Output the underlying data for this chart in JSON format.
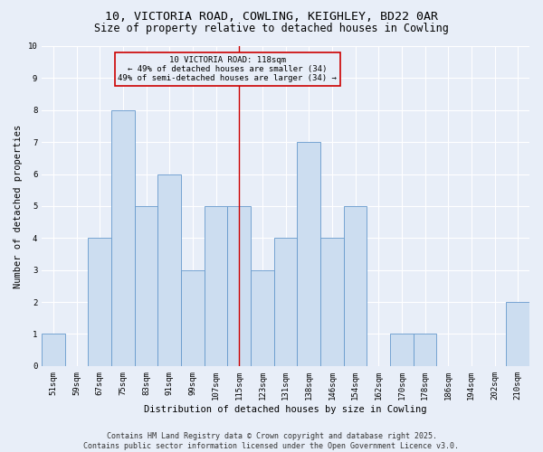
{
  "title1": "10, VICTORIA ROAD, COWLING, KEIGHLEY, BD22 0AR",
  "title2": "Size of property relative to detached houses in Cowling",
  "xlabel": "Distribution of detached houses by size in Cowling",
  "ylabel": "Number of detached properties",
  "categories": [
    "51sqm",
    "59sqm",
    "67sqm",
    "75sqm",
    "83sqm",
    "91sqm",
    "99sqm",
    "107sqm",
    "115sqm",
    "123sqm",
    "131sqm",
    "138sqm",
    "146sqm",
    "154sqm",
    "162sqm",
    "170sqm",
    "178sqm",
    "186sqm",
    "194sqm",
    "202sqm",
    "210sqm"
  ],
  "bar_values": [
    1,
    0,
    4,
    8,
    5,
    6,
    3,
    5,
    5,
    3,
    4,
    7,
    4,
    5,
    0,
    1,
    1,
    0,
    0,
    0,
    2
  ],
  "bar_color": "#ccddf0",
  "bar_edge_color": "#6699cc",
  "vline_idx": 8,
  "vline_color": "#cc0000",
  "ylim": [
    0,
    10
  ],
  "yticks": [
    0,
    1,
    2,
    3,
    4,
    5,
    6,
    7,
    8,
    9,
    10
  ],
  "annotation_text": "10 VICTORIA ROAD: 118sqm\n← 49% of detached houses are smaller (34)\n49% of semi-detached houses are larger (34) →",
  "footer": "Contains HM Land Registry data © Crown copyright and database right 2025.\nContains public sector information licensed under the Open Government Licence v3.0.",
  "bg_color": "#e8eef8",
  "grid_color": "#ffffff",
  "title_fontsize": 9.5,
  "subtitle_fontsize": 8.5,
  "axis_label_fontsize": 7.5,
  "tick_fontsize": 6.5,
  "annotation_fontsize": 6.5,
  "footer_fontsize": 6.0
}
